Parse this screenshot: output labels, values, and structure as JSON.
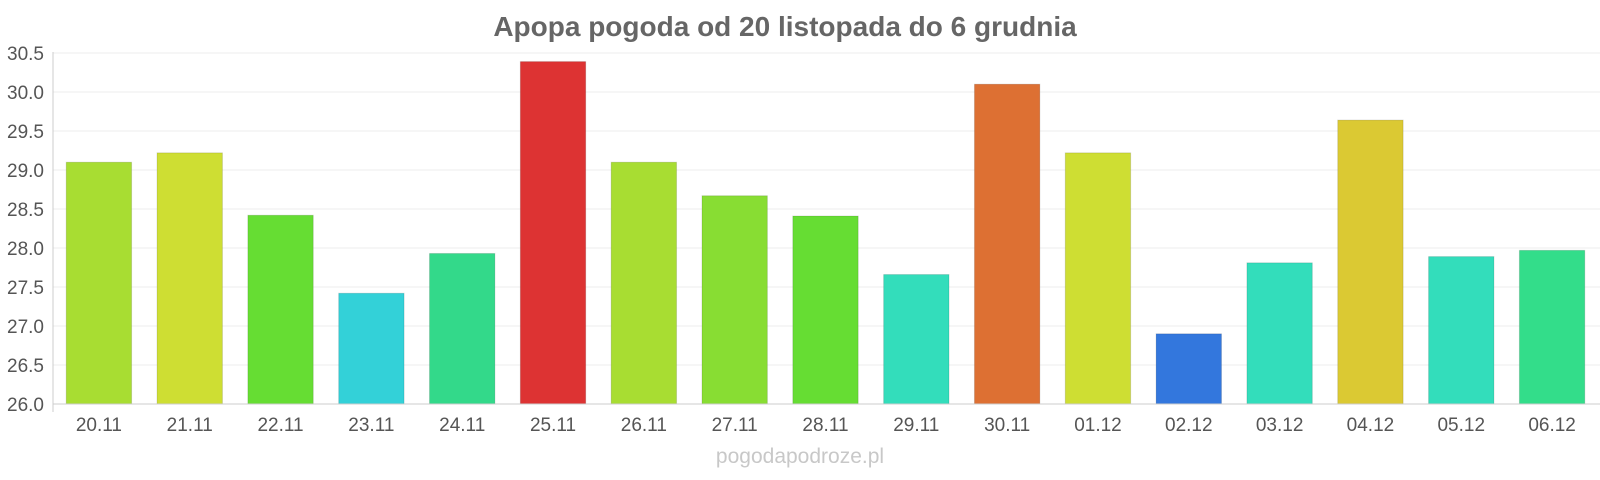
{
  "chart_data": {
    "type": "bar",
    "title": "Apopa pogoda od 20 listopada do 6 grudnia",
    "xlabel": "",
    "ylabel": "",
    "categories": [
      "20.11",
      "21.11",
      "22.11",
      "23.11",
      "24.11",
      "25.11",
      "26.11",
      "27.11",
      "28.11",
      "29.11",
      "30.11",
      "01.12",
      "02.12",
      "03.12",
      "04.12",
      "05.12",
      "06.12"
    ],
    "values": [
      29.1,
      29.22,
      28.42,
      27.42,
      27.93,
      30.39,
      29.1,
      28.67,
      28.41,
      27.66,
      30.1,
      29.22,
      26.9,
      27.81,
      29.64,
      27.89,
      27.97
    ],
    "colors": [
      "#a8dd32",
      "#cede33",
      "#66dd33",
      "#33d1d8",
      "#33d98a",
      "#dd3333",
      "#a8dd32",
      "#88dd33",
      "#66dd33",
      "#33ddbb",
      "#dd7033",
      "#cede33",
      "#3377dd",
      "#33ddbb",
      "#dbc933",
      "#33ddbb",
      "#33dd8a"
    ],
    "ylim": [
      26.0,
      30.5
    ],
    "yticks": [
      "26.0",
      "26.5",
      "27.0",
      "27.5",
      "28.0",
      "28.5",
      "29.0",
      "29.5",
      "30.0",
      "30.5"
    ],
    "grid": true,
    "legend": "none"
  },
  "watermark": "pogodapodroze.pl"
}
